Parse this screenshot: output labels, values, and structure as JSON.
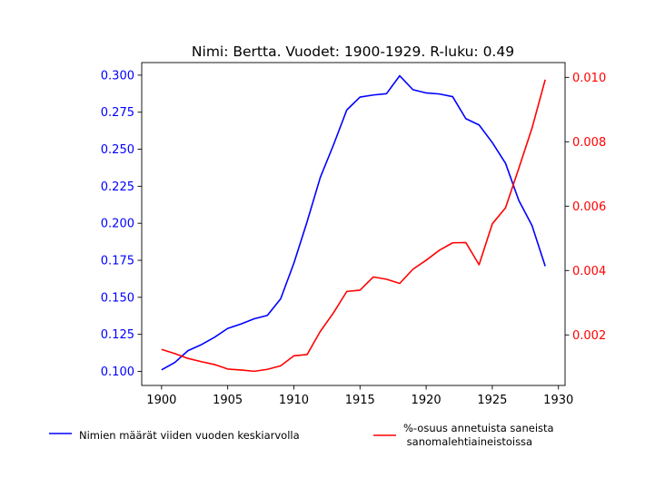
{
  "chart_data": {
    "type": "line",
    "title": "Nimi: Bertta. Vuodet: 1900-1929. R-luku: 0.49",
    "xlabel": "",
    "ylabel_left": "",
    "ylabel_right": "",
    "xlim": [
      1898.5,
      1930.5
    ],
    "xticks": [
      1900,
      1905,
      1910,
      1915,
      1920,
      1925,
      1930
    ],
    "ylim_left": [
      0.0905,
      0.3085
    ],
    "yticks_left": [
      0.1,
      0.125,
      0.15,
      0.175,
      0.2,
      0.225,
      0.25,
      0.275,
      0.3
    ],
    "ytick_labels_left": [
      "0.100",
      "0.125",
      "0.150",
      "0.175",
      "0.200",
      "0.225",
      "0.250",
      "0.275",
      "0.300"
    ],
    "ylim_right": [
      0.00043,
      0.01046
    ],
    "yticks_right": [
      0.002,
      0.004,
      0.006,
      0.008,
      0.01
    ],
    "ytick_labels_right": [
      "0.002",
      "0.004",
      "0.006",
      "0.008",
      "0.010"
    ],
    "legend_placement": "below",
    "colors": {
      "left_axis": "#0000ff",
      "right_axis": "#ff0000"
    },
    "series": [
      {
        "name": "Nimien määrät viiden vuoden keskiarvolla",
        "axis": "left",
        "color": "#0000ff",
        "x": [
          1900,
          1901,
          1902,
          1903,
          1904,
          1905,
          1906,
          1907,
          1908,
          1909,
          1910,
          1911,
          1912,
          1913,
          1914,
          1915,
          1916,
          1917,
          1918,
          1919,
          1920,
          1921,
          1922,
          1923,
          1924,
          1925,
          1926,
          1927,
          1928,
          1929
        ],
        "values": [
          0.101,
          0.106,
          0.114,
          0.118,
          0.123,
          0.129,
          0.132,
          0.1355,
          0.1378,
          0.149,
          0.173,
          0.201,
          0.231,
          0.253,
          0.2765,
          0.2852,
          0.2866,
          0.2875,
          0.2996,
          0.2902,
          0.288,
          0.2873,
          0.2855,
          0.2706,
          0.2664,
          0.2545,
          0.2405,
          0.2155,
          0.1985,
          0.171
        ]
      },
      {
        "name": "%-osuus annetuista saneista\n sanomalehtiaineistoissa",
        "axis": "right",
        "color": "#ff0000",
        "x": [
          1900,
          1901,
          1902,
          1903,
          1904,
          1905,
          1906,
          1907,
          1908,
          1909,
          1910,
          1911,
          1912,
          1913,
          1914,
          1915,
          1916,
          1917,
          1918,
          1919,
          1920,
          1921,
          1922,
          1923,
          1924,
          1925,
          1926,
          1927,
          1928,
          1929
        ],
        "values": [
          0.00155,
          0.00142,
          0.00127,
          0.00117,
          0.00108,
          0.00094,
          0.00091,
          0.00087,
          0.00093,
          0.00104,
          0.00135,
          0.00139,
          0.00211,
          0.00269,
          0.00335,
          0.00339,
          0.0038,
          0.00373,
          0.0036,
          0.00404,
          0.00432,
          0.00463,
          0.00486,
          0.00487,
          0.00418,
          0.00545,
          0.00595,
          0.00717,
          0.00842,
          0.00993
        ]
      }
    ]
  }
}
